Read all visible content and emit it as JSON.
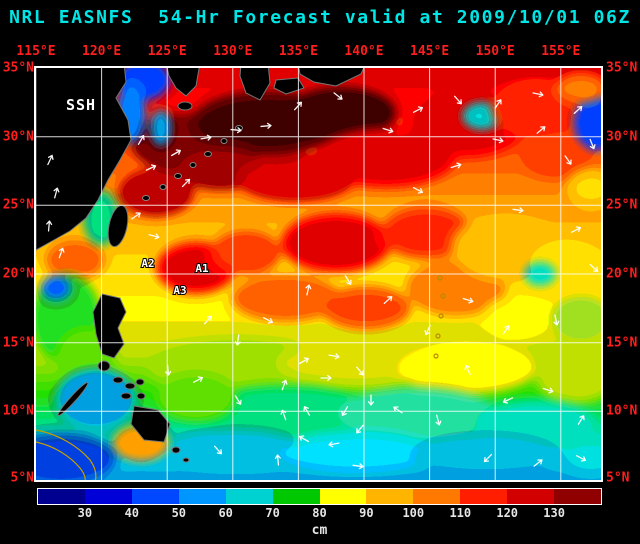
{
  "header": {
    "title": "NRL EASNFS  54-Hr Forecast valid at 2009/10/01 06Z"
  },
  "map": {
    "variable_label": "SSH",
    "lon_ticks": [
      "115°E",
      "120°E",
      "125°E",
      "130°E",
      "135°E",
      "140°E",
      "145°E",
      "150°E",
      "155°E"
    ],
    "lat_ticks": [
      "35°N",
      "30°N",
      "25°N",
      "20°N",
      "15°N",
      "10°N",
      "5°N"
    ],
    "eddy_labels": [
      {
        "id": "A1"
      },
      {
        "id": "A2"
      },
      {
        "id": "A3"
      }
    ]
  },
  "colorbar": {
    "ticks": [
      "30",
      "40",
      "50",
      "60",
      "70",
      "80",
      "90",
      "100",
      "110",
      "120",
      "130"
    ],
    "unit": "cm",
    "segment_colors": [
      "#000090",
      "#0000d8",
      "#0048ff",
      "#0096ff",
      "#00d2d2",
      "#00c800",
      "#ffff00",
      "#ffb400",
      "#ff7800",
      "#ff1e00",
      "#d20000",
      "#900000"
    ]
  },
  "chart_data": {
    "type": "heatmap",
    "title": "NRL EASNFS 54-Hr Forecast valid at 2009/10/01 06Z",
    "variable": "SSH",
    "units": "cm",
    "x_axis_ticks": [
      "115°E",
      "120°E",
      "125°E",
      "130°E",
      "135°E",
      "140°E",
      "145°E",
      "150°E",
      "155°E"
    ],
    "y_axis_ticks": [
      "35°N",
      "30°N",
      "25°N",
      "20°N",
      "15°N",
      "10°N",
      "5°N"
    ],
    "colorbar_ticks": [
      30,
      40,
      50,
      60,
      70,
      80,
      90,
      100,
      110,
      120,
      130
    ],
    "legend_position": "bottom",
    "grid": true,
    "annotations": [
      "A1",
      "A2",
      "A3"
    ]
  }
}
